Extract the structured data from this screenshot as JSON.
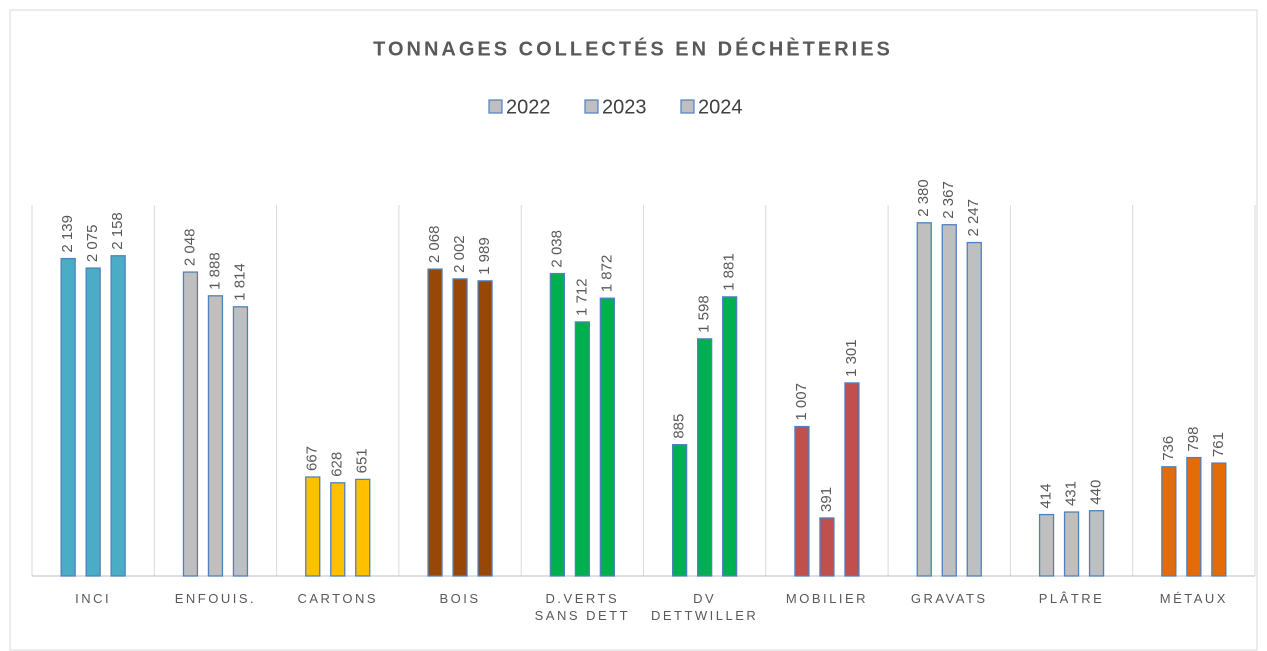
{
  "chart_data": {
    "type": "bar",
    "title": "TONNAGES COLLECTÉS EN DÉCHÈTERIES",
    "categories": [
      "INCI",
      "ENFOUIS.",
      "CARTONS",
      "BOIS",
      "D.VERTS\nSANS DETT",
      "DV\nDETTWILLER",
      "MOBILIER",
      "GRAVATS",
      "PLÂTRE",
      "MÉTAUX"
    ],
    "colors": [
      "#4bacc6",
      "#bfbfbf",
      "#ffc000",
      "#974706",
      "#00b050",
      "#00b050",
      "#c0504d",
      "#bfbfbf",
      "#bfbfbf",
      "#e36c09"
    ],
    "series": [
      {
        "name": "2022",
        "color": "#bfbfbf",
        "values": [
          2139,
          2048,
          667,
          2068,
          2038,
          885,
          1007,
          2380,
          414,
          736
        ],
        "value_labels": [
          "2 139",
          "2 048",
          "667",
          "2 068",
          "2 038",
          "885",
          "1 007",
          "2 380",
          "414",
          "736"
        ]
      },
      {
        "name": "2023",
        "color": "#bfbfbf",
        "values": [
          2075,
          1888,
          628,
          2002,
          1712,
          1598,
          391,
          2367,
          431,
          798
        ],
        "value_labels": [
          "2 075",
          "1 888",
          "628",
          "2 002",
          "1 712",
          "1 598",
          "391",
          "2 367",
          "431",
          "798"
        ]
      },
      {
        "name": "2024",
        "color": "#bfbfbf",
        "values": [
          2158,
          1814,
          651,
          1989,
          1872,
          1881,
          1301,
          2247,
          440,
          761
        ],
        "value_labels": [
          "2 158",
          "1 814",
          "651",
          "1 989",
          "1 872",
          "1 881",
          "1 301",
          "2 247",
          "440",
          "761"
        ]
      }
    ],
    "ylim": [
      0,
      2500
    ]
  }
}
